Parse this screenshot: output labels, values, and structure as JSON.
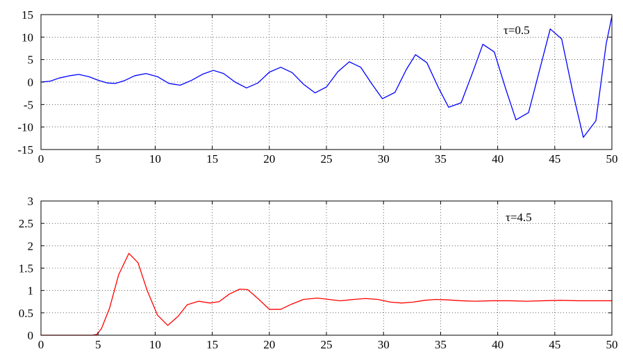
{
  "chart_data": [
    {
      "type": "line",
      "title": "",
      "xlabel": "",
      "ylabel": "",
      "xlim": [
        0,
        50
      ],
      "ylim": [
        -15,
        15
      ],
      "xticks": [
        0,
        5,
        10,
        15,
        20,
        25,
        30,
        35,
        40,
        45,
        50
      ],
      "yticks": [
        -15,
        -10,
        -5,
        0,
        5,
        10,
        15
      ],
      "grid": true,
      "annotation": "τ=0.5",
      "series": [
        {
          "color": "#0000ff",
          "x": [
            0,
            0.8,
            1.6,
            2.5,
            3.3,
            4.2,
            5.0,
            5.8,
            6.5,
            7.3,
            8.2,
            9.2,
            10.2,
            11.2,
            12.2,
            13.2,
            14.2,
            15.1,
            16.0,
            17.0,
            18.0,
            19.0,
            20.0,
            21.0,
            22.0,
            23.0,
            24.0,
            25.0,
            26.0,
            27.0,
            28.0,
            29.0,
            29.9,
            31.0,
            32.0,
            32.8,
            33.8,
            34.8,
            35.7,
            36.8,
            37.8,
            38.7,
            39.7,
            40.7,
            41.6,
            42.7,
            43.7,
            44.6,
            45.6,
            46.6,
            47.5,
            48.6,
            49.5,
            50.0
          ],
          "y": [
            0,
            0.2,
            0.9,
            1.4,
            1.7,
            1.2,
            0.4,
            -0.2,
            -0.3,
            0.3,
            1.4,
            1.9,
            1.2,
            -0.3,
            -0.7,
            0.4,
            1.8,
            2.6,
            1.9,
            0,
            -1.3,
            -0.2,
            2.2,
            3.3,
            2.1,
            -0.5,
            -2.4,
            -1.1,
            2.3,
            4.5,
            3.3,
            -0.5,
            -3.7,
            -2.3,
            2.8,
            6.1,
            4.3,
            -1.2,
            -5.6,
            -4.6,
            2.1,
            8.4,
            6.7,
            -1.5,
            -8.4,
            -6.8,
            3.0,
            11.8,
            9.6,
            -2.5,
            -12.3,
            -8.6,
            8.5,
            14.6
          ]
        }
      ]
    },
    {
      "type": "line",
      "title": "",
      "xlabel": "",
      "ylabel": "",
      "xlim": [
        0,
        50
      ],
      "ylim": [
        0,
        3
      ],
      "xticks": [
        0,
        5,
        10,
        15,
        20,
        25,
        30,
        35,
        40,
        45,
        50
      ],
      "yticks": [
        0,
        0.5,
        1,
        1.5,
        2,
        2.5,
        3
      ],
      "grid": true,
      "annotation": "τ=4.5",
      "series": [
        {
          "color": "#ff0000",
          "x": [
            0,
            4.5,
            4.9,
            5.3,
            6.0,
            6.8,
            7.7,
            8.5,
            9.3,
            10.2,
            11.1,
            12.0,
            12.8,
            13.8,
            14.8,
            15.6,
            16.5,
            17.4,
            18.1,
            19.0,
            20.0,
            21.0,
            22.0,
            23.0,
            24.2,
            25.2,
            26.2,
            27.4,
            28.4,
            29.5,
            30.6,
            31.6,
            32.6,
            33.6,
            34.6,
            35.6,
            36.8,
            38.0,
            39.5,
            41.0,
            42.5,
            44.0,
            45.5,
            47.0,
            48.5,
            50.0
          ],
          "y": [
            0,
            0,
            0.02,
            0.15,
            0.6,
            1.35,
            1.83,
            1.62,
            1.0,
            0.45,
            0.22,
            0.42,
            0.68,
            0.76,
            0.72,
            0.75,
            0.92,
            1.03,
            1.02,
            0.82,
            0.58,
            0.58,
            0.7,
            0.8,
            0.83,
            0.8,
            0.77,
            0.8,
            0.82,
            0.8,
            0.74,
            0.72,
            0.74,
            0.78,
            0.8,
            0.79,
            0.77,
            0.76,
            0.77,
            0.77,
            0.76,
            0.77,
            0.78,
            0.77,
            0.77,
            0.77
          ]
        }
      ]
    }
  ]
}
